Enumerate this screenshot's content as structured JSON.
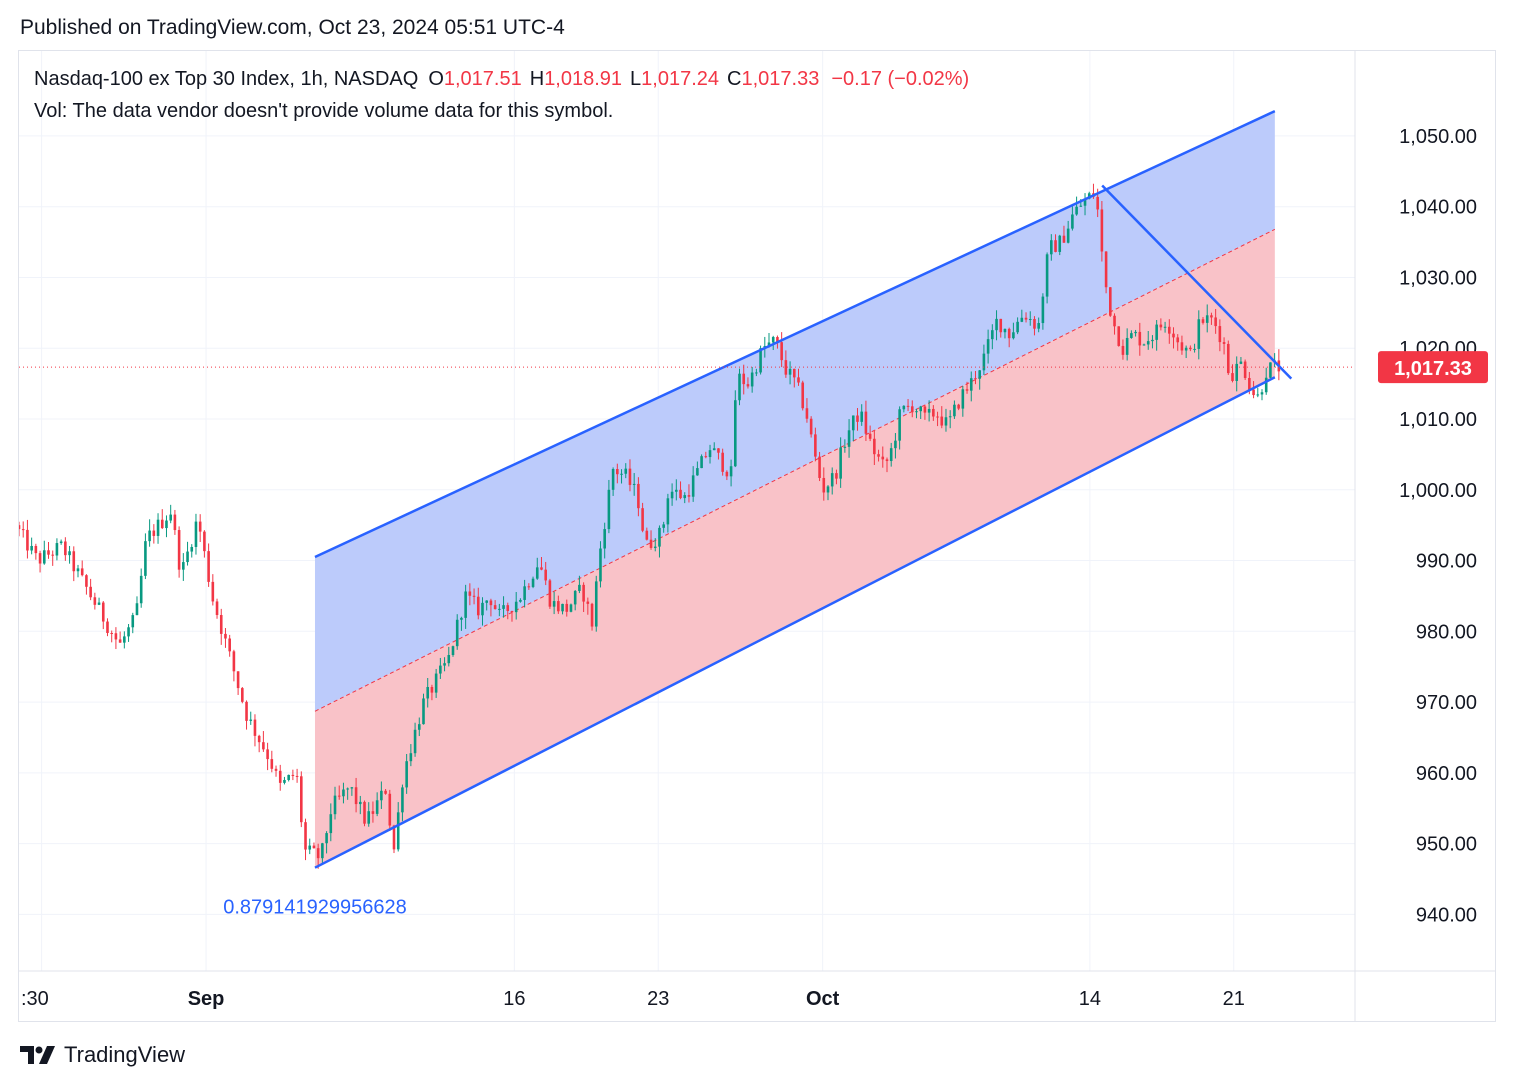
{
  "header": {
    "published": "Published on TradingView.com, Oct 23, 2024 05:51 UTC-4"
  },
  "legend": {
    "symbol": "Nasdaq-100 ex Top 30 Index, 1h, NASDAQ",
    "o_label": "O",
    "o_value": "1,017.51",
    "h_label": "H",
    "h_value": "1,018.91",
    "l_label": "L",
    "l_value": "1,017.24",
    "c_label": "C",
    "c_value": "1,017.33",
    "change": "−0.17 (−0.02%)",
    "vol_note": "Vol: The data vendor doesn't provide volume data for this symbol."
  },
  "footer": {
    "brand": "TradingView",
    "logo_icon": "tradingview-logo-icon"
  },
  "colors": {
    "up": "#089981",
    "down": "#f23645",
    "channel_line": "#2962ff",
    "upper_fill": "#bccbfb",
    "lower_fill": "#f9c2c8",
    "price_label_bg": "#f23645"
  },
  "chart_data": {
    "type": "candlestick",
    "symbol": "Nasdaq-100 ex Top 30 Index",
    "interval": "1h",
    "y_ticks": [
      "940.00",
      "950.00",
      "960.00",
      "970.00",
      "980.00",
      "990.00",
      "1,000.00",
      "1,010.00",
      "1,020.00",
      "1,030.00",
      "1,040.00",
      "1,050.00"
    ],
    "y_tick_values": [
      940,
      950,
      960,
      970,
      980,
      990,
      1000,
      1010,
      1020,
      1030,
      1040,
      1050
    ],
    "ylim": [
      932,
      1062
    ],
    "x_range_days": [
      -9.1,
      55.9
    ],
    "x_ticks": [
      {
        "label": ":30",
        "day": -8.0,
        "bold": false
      },
      {
        "label": "Sep",
        "day": 0,
        "bold": true
      },
      {
        "label": "16",
        "day": 15,
        "bold": false
      },
      {
        "label": "23",
        "day": 22,
        "bold": false
      },
      {
        "label": "Oct",
        "day": 30,
        "bold": true
      },
      {
        "label": "14",
        "day": 43,
        "bold": false
      },
      {
        "label": "21",
        "day": 50,
        "bold": false
      }
    ],
    "last_price": "1,017.33",
    "last_price_value": 1017.33,
    "channel_label": "0.879141929956628",
    "channel": {
      "upper": [
        [
          5.3,
          990.5
        ],
        [
          52.0,
          1053.5
        ]
      ],
      "mid": [
        [
          5.3,
          968.7
        ],
        [
          52.0,
          1036.8
        ]
      ],
      "lower": [
        [
          5.3,
          946.6
        ],
        [
          52.0,
          1015.9
        ]
      ],
      "fill_right_day": 52.0
    },
    "trendline": [
      [
        43.6,
        1043.0
      ],
      [
        52.8,
        1015.7
      ]
    ],
    "anchors": [
      {
        "date": "Aug 30",
        "day": -9.1,
        "price": 995
      },
      {
        "date": "Aug 30",
        "day": -8.0,
        "price": 990
      },
      {
        "date": "Aug 31",
        "day": -6.8,
        "price": 992
      },
      {
        "date": "Sep 2",
        "day": -4.0,
        "price": 978
      },
      {
        "date": "Sep 3",
        "day": -3.2,
        "price": 982
      },
      {
        "date": "Sep 4",
        "day": -2.7,
        "price": 993
      },
      {
        "date": "Sep 4",
        "day": -1.5,
        "price": 997
      },
      {
        "date": "Sep 5",
        "day": -1.0,
        "price": 988
      },
      {
        "date": "Sep 5",
        "day": -0.2,
        "price": 996
      },
      {
        "date": "Sep 6",
        "day": 0.5,
        "price": 985
      },
      {
        "date": "Sep 7",
        "day": 1.5,
        "price": 975
      },
      {
        "date": "Sep 8",
        "day": 2.2,
        "price": 968
      },
      {
        "date": "Sep 9",
        "day": 3.3,
        "price": 962
      },
      {
        "date": "Sep 9",
        "day": 3.8,
        "price": 958
      },
      {
        "date": "Sep 10",
        "day": 4.6,
        "price": 960
      },
      {
        "date": "Sep 11",
        "day": 5.0,
        "price": 949
      },
      {
        "date": "Sep 11",
        "day": 5.8,
        "price": 948
      },
      {
        "date": "Sep 12",
        "day": 6.3,
        "price": 955
      },
      {
        "date": "Sep 12",
        "day": 7.2,
        "price": 958
      },
      {
        "date": "Sep 13",
        "day": 8.0,
        "price": 953
      },
      {
        "date": "Sep 14",
        "day": 9.0,
        "price": 958
      },
      {
        "date": "Sep 14",
        "day": 9.3,
        "price": 948
      },
      {
        "date": "Sep 15",
        "day": 9.8,
        "price": 960
      },
      {
        "date": "Sep 15",
        "day": 10.8,
        "price": 970
      },
      {
        "date": "Sep 16",
        "day": 12.0,
        "price": 976
      },
      {
        "date": "Sep 17",
        "day": 12.8,
        "price": 985
      },
      {
        "date": "Sep 17",
        "day": 13.5,
        "price": 983
      },
      {
        "date": "Sep 18",
        "day": 14.0,
        "price": 985
      },
      {
        "date": "Sep 18",
        "day": 14.5,
        "price": 982
      },
      {
        "date": "Sep 19",
        "day": 15.5,
        "price": 985
      },
      {
        "date": "Sep 20",
        "day": 16.4,
        "price": 990
      },
      {
        "date": "Sep 20",
        "day": 17.0,
        "price": 984
      },
      {
        "date": "Sep 21",
        "day": 17.7,
        "price": 983
      },
      {
        "date": "Sep 22",
        "day": 18.5,
        "price": 986
      },
      {
        "date": "Sep 22",
        "day": 19.0,
        "price": 981
      },
      {
        "date": "Sep 23",
        "day": 19.3,
        "price": 990
      },
      {
        "date": "Sep 23",
        "day": 20.0,
        "price": 1003
      },
      {
        "date": "Sep 24",
        "day": 20.6,
        "price": 1002
      },
      {
        "date": "Sep 24",
        "day": 21.2,
        "price": 999
      },
      {
        "date": "Sep 25",
        "day": 21.6,
        "price": 992
      },
      {
        "date": "Sep 26",
        "day": 22.4,
        "price": 994
      },
      {
        "date": "Sep 26",
        "day": 22.7,
        "price": 1000
      },
      {
        "date": "Sep 27",
        "day": 23.5,
        "price": 999
      },
      {
        "date": "Sep 27",
        "day": 24.2,
        "price": 1003
      },
      {
        "date": "Sep 28",
        "day": 24.7,
        "price": 1006
      },
      {
        "date": "Sep 29",
        "day": 25.8,
        "price": 1002
      },
      {
        "date": "Sep 29",
        "day": 26.0,
        "price": 1016
      },
      {
        "date": "Sep 30",
        "day": 26.6,
        "price": 1015
      },
      {
        "date": "Sep 30",
        "day": 27.3,
        "price": 1020
      },
      {
        "date": "Oct 1",
        "day": 27.9,
        "price": 1021
      },
      {
        "date": "Oct 1",
        "day": 28.4,
        "price": 1017
      },
      {
        "date": "Oct 2",
        "day": 28.9,
        "price": 1015
      },
      {
        "date": "Oct 2",
        "day": 29.4,
        "price": 1011
      },
      {
        "date": "Oct 3",
        "day": 29.8,
        "price": 1005
      },
      {
        "date": "Oct 3",
        "day": 30.2,
        "price": 1000
      },
      {
        "date": "Oct 4",
        "day": 30.8,
        "price": 1002
      },
      {
        "date": "Oct 4",
        "day": 31.4,
        "price": 1008
      },
      {
        "date": "Oct 5",
        "day": 32.0,
        "price": 1011
      },
      {
        "date": "Oct 5",
        "day": 32.6,
        "price": 1006
      },
      {
        "date": "Oct 6",
        "day": 33.2,
        "price": 1003
      },
      {
        "date": "Oct 6",
        "day": 33.6,
        "price": 1006
      },
      {
        "date": "Oct 7",
        "day": 34.0,
        "price": 1011
      },
      {
        "date": "Oct 7",
        "day": 34.6,
        "price": 1012
      },
      {
        "date": "Oct 8",
        "day": 35.2,
        "price": 1010
      },
      {
        "date": "Oct 8",
        "day": 35.7,
        "price": 1011
      },
      {
        "date": "Oct 9",
        "day": 36.3,
        "price": 1009
      },
      {
        "date": "Oct 9",
        "day": 36.9,
        "price": 1013
      },
      {
        "date": "Oct 10",
        "day": 37.4,
        "price": 1015
      },
      {
        "date": "Oct 10",
        "day": 38.1,
        "price": 1019
      },
      {
        "date": "Oct 11",
        "day": 38.7,
        "price": 1024
      },
      {
        "date": "Oct 11",
        "day": 39.3,
        "price": 1022
      },
      {
        "date": "Oct 12",
        "day": 40.0,
        "price": 1025
      },
      {
        "date": "Oct 12",
        "day": 40.7,
        "price": 1023
      },
      {
        "date": "Oct 13",
        "day": 41.2,
        "price": 1034
      },
      {
        "date": "Oct 13",
        "day": 41.8,
        "price": 1035
      },
      {
        "date": "Oct 14",
        "day": 42.4,
        "price": 1039
      },
      {
        "date": "Oct 14",
        "day": 43.0,
        "price": 1041
      },
      {
        "date": "Oct 15",
        "day": 43.5,
        "price": 1042
      },
      {
        "date": "Oct 15",
        "day": 43.7,
        "price": 1036
      },
      {
        "date": "Oct 15",
        "day": 43.9,
        "price": 1030
      },
      {
        "date": "Oct 16",
        "day": 44.3,
        "price": 1024
      },
      {
        "date": "Oct 16",
        "day": 44.8,
        "price": 1020
      },
      {
        "date": "Oct 17",
        "day": 45.3,
        "price": 1022
      },
      {
        "date": "Oct 17",
        "day": 45.8,
        "price": 1021
      },
      {
        "date": "Oct 18",
        "day": 46.3,
        "price": 1022
      },
      {
        "date": "Oct 18",
        "day": 46.9,
        "price": 1024
      },
      {
        "date": "Oct 19",
        "day": 47.5,
        "price": 1021
      },
      {
        "date": "Oct 19",
        "day": 48.1,
        "price": 1019
      },
      {
        "date": "Oct 20",
        "day": 48.6,
        "price": 1024
      },
      {
        "date": "Oct 20",
        "day": 49.2,
        "price": 1024
      },
      {
        "date": "Oct 20",
        "day": 49.7,
        "price": 1021
      },
      {
        "date": "Oct 21",
        "day": 50.0,
        "price": 1016
      },
      {
        "date": "Oct 21",
        "day": 50.6,
        "price": 1018
      },
      {
        "date": "Oct 22",
        "day": 51.1,
        "price": 1014
      },
      {
        "date": "Oct 22",
        "day": 51.4,
        "price": 1013
      },
      {
        "date": "Oct 22",
        "day": 51.8,
        "price": 1017
      },
      {
        "date": "Oct 23",
        "day": 52.2,
        "price": 1017.33
      }
    ]
  }
}
